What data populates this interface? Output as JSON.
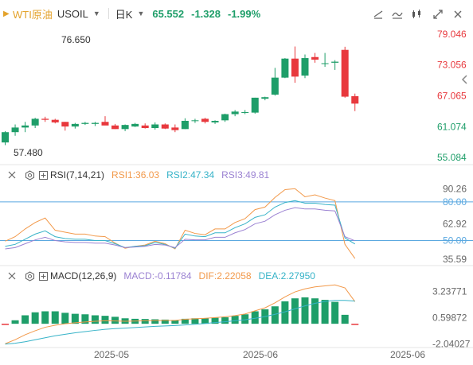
{
  "header": {
    "symbol": "WTI原油",
    "code": "USOIL",
    "period": "日K",
    "price": "65.552",
    "change": "-1.328",
    "change_pct": "-1.99%"
  },
  "toolbar_icons": [
    "draw-line-icon",
    "indicator-icon",
    "compare-icon",
    "fullscreen-icon",
    "close-icon"
  ],
  "price_axis": [
    "79.046",
    "73.056",
    "67.065",
    "61.074",
    "55.084"
  ],
  "price_annotations": {
    "high": "76.650",
    "low": "57.480"
  },
  "rsi": {
    "label": "RSI(7,14,21)",
    "rsi1": "RSI1:36.03",
    "rsi2": "RSI2:47.34",
    "rsi3": "RSI3:49.81",
    "axis": [
      "90.26",
      "80.00",
      "62.92",
      "50.00",
      "35.59"
    ]
  },
  "macd": {
    "label": "MACD(12,26,9)",
    "macd": "MACD:-0.11784",
    "dif": "DIF:2.22058",
    "dea": "DEA:2.27950",
    "axis": [
      "3.23771",
      "0.59872",
      "-2.04027"
    ]
  },
  "x_axis": [
    "2025-05",
    "2025-06",
    "2025-06"
  ],
  "colors": {
    "up": "#1e9e69",
    "down": "#e8383d",
    "rsi1": "#f2994a",
    "rsi2": "#37b3c8",
    "rsi3": "#9b82d2",
    "ref_line": "#5aa8e0",
    "dif": "#f2994a",
    "dea": "#37b3c8"
  },
  "chart_data": [
    {
      "type": "candlestick",
      "title": "",
      "ylim": [
        55.084,
        79.046
      ],
      "candles": [
        {
          "o": 58.0,
          "h": 60.2,
          "l": 57.48,
          "c": 60.0
        },
        {
          "o": 60.0,
          "h": 61.5,
          "l": 59.3,
          "c": 60.9
        },
        {
          "o": 60.9,
          "h": 62.0,
          "l": 60.0,
          "c": 61.3
        },
        {
          "o": 61.3,
          "h": 62.8,
          "l": 60.8,
          "c": 62.6
        },
        {
          "o": 62.6,
          "h": 63.0,
          "l": 62.0,
          "c": 62.4
        },
        {
          "o": 62.4,
          "h": 62.6,
          "l": 61.7,
          "c": 61.9
        },
        {
          "o": 62.0,
          "h": 62.0,
          "l": 60.3,
          "c": 61.1
        },
        {
          "o": 61.1,
          "h": 61.8,
          "l": 60.7,
          "c": 61.6
        },
        {
          "o": 61.6,
          "h": 62.0,
          "l": 61.4,
          "c": 61.8
        },
        {
          "o": 61.6,
          "h": 62.0,
          "l": 61.2,
          "c": 61.8
        },
        {
          "o": 62.0,
          "h": 63.1,
          "l": 61.5,
          "c": 61.3
        },
        {
          "o": 61.3,
          "h": 61.6,
          "l": 60.6,
          "c": 60.6
        },
        {
          "o": 60.6,
          "h": 61.5,
          "l": 60.2,
          "c": 61.4
        },
        {
          "o": 61.1,
          "h": 61.8,
          "l": 61.0,
          "c": 61.6
        },
        {
          "o": 61.3,
          "h": 61.7,
          "l": 60.7,
          "c": 60.8
        },
        {
          "o": 60.8,
          "h": 61.9,
          "l": 60.5,
          "c": 61.5
        },
        {
          "o": 61.5,
          "h": 61.7,
          "l": 60.6,
          "c": 60.7
        },
        {
          "o": 60.9,
          "h": 61.5,
          "l": 60.0,
          "c": 60.4
        },
        {
          "o": 60.6,
          "h": 62.7,
          "l": 60.6,
          "c": 62.2
        },
        {
          "o": 62.2,
          "h": 62.6,
          "l": 61.8,
          "c": 62.3
        },
        {
          "o": 62.6,
          "h": 62.8,
          "l": 61.7,
          "c": 62.0
        },
        {
          "o": 61.9,
          "h": 62.3,
          "l": 61.6,
          "c": 62.2
        },
        {
          "o": 62.3,
          "h": 63.6,
          "l": 62.0,
          "c": 63.5
        },
        {
          "o": 63.5,
          "h": 64.3,
          "l": 63.1,
          "c": 64.0
        },
        {
          "o": 63.9,
          "h": 64.3,
          "l": 63.5,
          "c": 63.9
        },
        {
          "o": 63.8,
          "h": 66.7,
          "l": 63.6,
          "c": 66.7
        },
        {
          "o": 66.5,
          "h": 66.9,
          "l": 66.2,
          "c": 66.8
        },
        {
          "o": 67.3,
          "h": 72.5,
          "l": 67.1,
          "c": 70.6
        },
        {
          "o": 70.6,
          "h": 74.4,
          "l": 70.5,
          "c": 74.3
        },
        {
          "o": 74.3,
          "h": 76.65,
          "l": 69.6,
          "c": 70.8
        },
        {
          "o": 71.0,
          "h": 75.1,
          "l": 70.5,
          "c": 74.4
        },
        {
          "o": 74.6,
          "h": 75.4,
          "l": 73.5,
          "c": 74.1
        },
        {
          "o": 73.4,
          "h": 75.4,
          "l": 72.7,
          "c": 73.4
        },
        {
          "o": 73.5,
          "h": 74.0,
          "l": 72.1,
          "c": 73.7
        },
        {
          "o": 76.0,
          "h": 76.6,
          "l": 66.7,
          "c": 66.9
        },
        {
          "o": 67.0,
          "h": 67.5,
          "l": 64.1,
          "c": 65.55
        }
      ]
    },
    {
      "type": "line",
      "title": "RSI(7,14,21)",
      "ylim": [
        33,
        96
      ],
      "series": [
        {
          "name": "RSI1",
          "values": [
            49.5,
            53,
            59,
            64,
            67.5,
            58,
            56.5,
            55,
            55,
            53.5,
            53,
            48,
            44,
            45.5,
            46.5,
            49.5,
            47.5,
            43.5,
            58,
            55.5,
            54.5,
            59,
            59,
            64,
            67,
            74,
            76,
            83.5,
            89.5,
            90.26,
            84,
            85.5,
            83,
            81,
            47,
            36.03
          ]
        },
        {
          "name": "RSI2",
          "values": [
            45.5,
            47,
            51,
            55,
            57.5,
            53,
            51.5,
            51,
            51,
            50,
            50,
            47.5,
            44.5,
            45.5,
            46,
            48.5,
            47,
            44,
            55,
            53.5,
            53,
            56,
            56,
            60,
            63,
            68,
            70,
            76,
            79.5,
            81,
            79,
            79,
            78,
            77.5,
            52,
            47.34
          ]
        },
        {
          "name": "RSI3",
          "values": [
            43.5,
            44.5,
            47.5,
            50.5,
            52.5,
            50,
            49,
            48.5,
            48.5,
            48,
            48,
            46.5,
            44.5,
            45,
            45.5,
            47,
            46.5,
            44.5,
            51,
            50.5,
            50.5,
            52.5,
            52.5,
            56,
            58.5,
            63,
            65,
            70,
            73.5,
            75.5,
            74.5,
            74.5,
            73.5,
            73,
            53,
            49.81
          ]
        }
      ]
    },
    {
      "type": "bar",
      "title": "MACD(12,26,9)",
      "ylim": [
        -2.3,
        4.4
      ],
      "histogram": [
        -0.12,
        0.35,
        0.85,
        1.15,
        1.25,
        1.25,
        1.1,
        1.0,
        0.95,
        0.85,
        0.8,
        0.7,
        0.55,
        0.5,
        0.48,
        0.45,
        0.42,
        0.38,
        0.5,
        0.55,
        0.55,
        0.6,
        0.65,
        0.8,
        0.95,
        1.25,
        1.45,
        1.75,
        2.25,
        2.55,
        2.65,
        2.55,
        2.4,
        2.2,
        0.9,
        -0.11784
      ],
      "series": [
        {
          "name": "DIF",
          "values": [
            -2.0,
            -1.6,
            -1.1,
            -0.7,
            -0.35,
            -0.15,
            0.0,
            0.1,
            0.18,
            0.25,
            0.3,
            0.28,
            0.25,
            0.27,
            0.3,
            0.32,
            0.33,
            0.33,
            0.45,
            0.5,
            0.55,
            0.62,
            0.7,
            0.82,
            0.98,
            1.3,
            1.6,
            2.1,
            2.7,
            3.2,
            3.5,
            3.7,
            3.8,
            3.9,
            3.6,
            2.22058
          ]
        },
        {
          "name": "DEA",
          "values": [
            -2.04,
            -1.95,
            -1.8,
            -1.6,
            -1.4,
            -1.2,
            -1.05,
            -0.9,
            -0.78,
            -0.66,
            -0.56,
            -0.49,
            -0.44,
            -0.38,
            -0.32,
            -0.26,
            -0.22,
            -0.18,
            -0.12,
            -0.05,
            0.03,
            0.12,
            0.2,
            0.3,
            0.4,
            0.55,
            0.72,
            0.95,
            1.2,
            1.5,
            1.8,
            2.05,
            2.25,
            2.35,
            2.35,
            2.2795
          ]
        }
      ]
    }
  ]
}
